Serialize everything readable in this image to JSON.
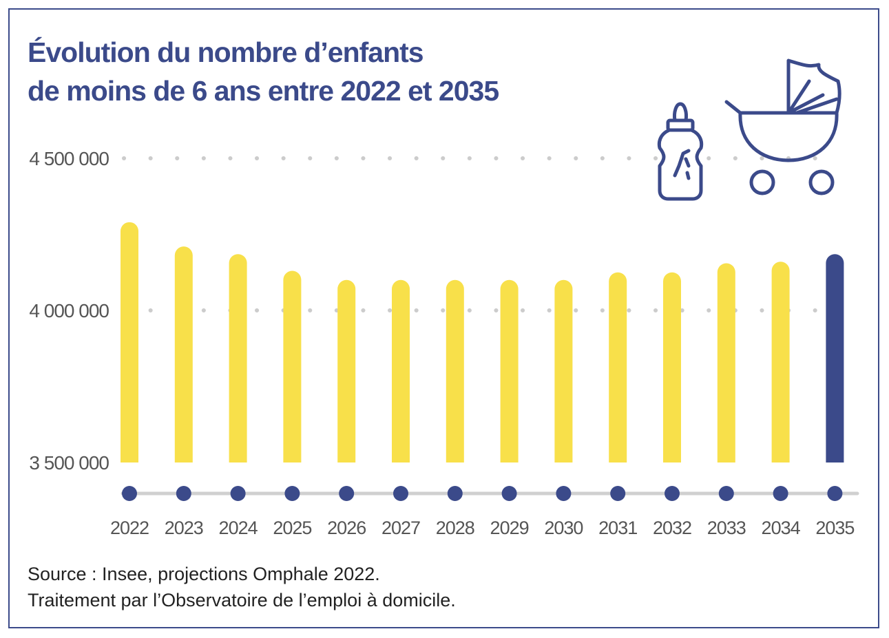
{
  "colors": {
    "navy": "#3b4a8a",
    "yellow": "#f8e04a",
    "grid_dot": "#cccccc",
    "axis_line": "#d0d0d0"
  },
  "icons": {
    "bottle": "baby-bottle-icon",
    "stroller": "baby-stroller-icon"
  },
  "chart_data": {
    "type": "bar",
    "title_lines": [
      "Évolution du nombre d’enfants",
      "de moins de 6 ans entre 2022 et 2035"
    ],
    "categories": [
      "2022",
      "2023",
      "2024",
      "2025",
      "2026",
      "2027",
      "2028",
      "2029",
      "2030",
      "2031",
      "2032",
      "2033",
      "2034",
      "2035"
    ],
    "values": [
      4290000,
      4210000,
      4185000,
      4130000,
      4100000,
      4100000,
      4100000,
      4100000,
      4100000,
      4125000,
      4125000,
      4155000,
      4160000,
      4185000
    ],
    "highlight_index": 13,
    "ylim": [
      3500000,
      4500000
    ],
    "yticks": [
      {
        "value": 4500000,
        "label": "4 500 000"
      },
      {
        "value": 4000000,
        "label": "4 000 000"
      },
      {
        "value": 3500000,
        "label": "3 500 000"
      }
    ],
    "xlabel": "",
    "ylabel": ""
  },
  "source": {
    "line1": "Source : Insee, projections Omphale 2022.",
    "line2": "Traitement par l’Observatoire de l’emploi à domicile."
  }
}
